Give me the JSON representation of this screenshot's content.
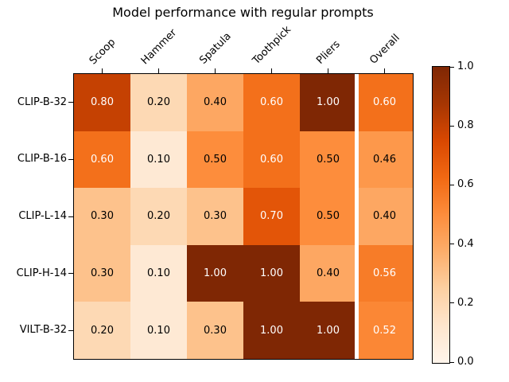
{
  "figure": {
    "background": "#ffffff",
    "axis_color": "#000000"
  },
  "chart_data": {
    "type": "heatmap",
    "title": "Model performance with regular prompts",
    "rows": [
      "CLIP-B-32",
      "CLIP-B-16",
      "CLIP-L-14",
      "CLIP-H-14",
      "VILT-B-32"
    ],
    "columns": [
      "Scoop",
      "Hammer",
      "Spatula",
      "Toothpick",
      "Pliers",
      "Overall"
    ],
    "values": [
      [
        0.8,
        0.2,
        0.4,
        0.6,
        1.0,
        0.6
      ],
      [
        0.6,
        0.1,
        0.5,
        0.6,
        0.5,
        0.46
      ],
      [
        0.3,
        0.2,
        0.3,
        0.7,
        0.5,
        0.4
      ],
      [
        0.3,
        0.1,
        1.0,
        1.0,
        0.4,
        0.56
      ],
      [
        0.2,
        0.1,
        0.3,
        1.0,
        1.0,
        0.52
      ]
    ],
    "value_format_decimals": 2,
    "colormap": {
      "name": "Oranges",
      "anchors": [
        "#fff5eb",
        "#fee6ce",
        "#fdd0a2",
        "#fdae6b",
        "#fd8d3c",
        "#f16913",
        "#d94801",
        "#a63603",
        "#7f2704"
      ]
    },
    "annotation_text_colors": {
      "light": "#ffffff",
      "dark": "#000000",
      "threshold": 0.5
    },
    "separator": {
      "before_column": "Overall",
      "before_column_index": 5,
      "color": "#ffffff"
    },
    "colorbar": {
      "position": "right",
      "range": [
        0.0,
        1.0
      ],
      "tick_values": [
        0.0,
        0.2,
        0.4,
        0.6,
        0.8,
        1.0
      ],
      "tick_labels": [
        "0.0",
        "0.2",
        "0.4",
        "0.6",
        "0.8",
        "1.0"
      ]
    },
    "grid": false,
    "legend": false,
    "xlabel": "",
    "ylabel": ""
  }
}
